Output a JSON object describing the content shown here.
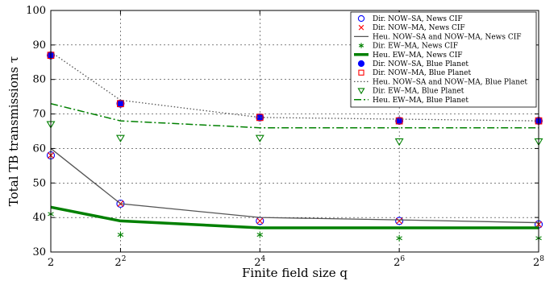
{
  "chart_data": {
    "type": "line",
    "xlabel": "Finite field size q",
    "ylabel": "Total TB transmissions τ",
    "x": [
      1,
      2,
      4,
      6,
      8
    ],
    "xtick_labels": [
      {
        "base": "2",
        "exp": ""
      },
      {
        "base": "2",
        "exp": "2"
      },
      {
        "base": "2",
        "exp": "4"
      },
      {
        "base": "2",
        "exp": "6"
      },
      {
        "base": "2",
        "exp": "8"
      }
    ],
    "xlim": [
      1,
      8
    ],
    "ylim": [
      30,
      100
    ],
    "yticks": [
      30,
      40,
      50,
      60,
      70,
      80,
      90,
      100
    ],
    "grid": true,
    "legend_position": "top-right",
    "colors": {
      "blue": "#0000ff",
      "red": "#ff0000",
      "gray": "#555555",
      "green": "#008000"
    },
    "series": [
      {
        "name": "Dir. NOW–SA, News CIF",
        "style": "marker",
        "marker": "circle-open",
        "color": "#0000ff",
        "values": [
          58,
          44,
          39,
          39,
          38
        ]
      },
      {
        "name": "Dir. NOW–MA, News CIF",
        "style": "marker",
        "marker": "x",
        "color": "#ff0000",
        "values": [
          58,
          44,
          39,
          39,
          38
        ]
      },
      {
        "name": "Heu. NOW–SA and NOW–MA, News CIF",
        "style": "line",
        "dash": "solid",
        "width": 1.3,
        "color": "#555555",
        "values": [
          60,
          44,
          40,
          39.3,
          38.5
        ]
      },
      {
        "name": "Dir. EW–MA, News CIF",
        "style": "marker",
        "marker": "asterisk",
        "color": "#008000",
        "values": [
          41,
          35,
          35,
          34,
          34
        ]
      },
      {
        "name": "Heu. EW–MA, News CIF",
        "style": "line",
        "dash": "solid",
        "width": 3.5,
        "color": "#008000",
        "values": [
          43,
          39,
          37,
          37,
          37
        ]
      },
      {
        "name": "Dir. NOW–SA, Blue Planet",
        "style": "marker",
        "marker": "circle-filled",
        "color": "#0000ff",
        "values": [
          87,
          73,
          69,
          68,
          68
        ]
      },
      {
        "name": "Dir. NOW–MA, Blue Planet",
        "style": "marker",
        "marker": "square-open",
        "color": "#ff0000",
        "values": [
          87,
          73,
          69,
          68,
          68
        ]
      },
      {
        "name": "Heu. NOW–SA and NOW–MA, Blue Planet",
        "style": "line",
        "dash": "dotted",
        "width": 1.3,
        "color": "#555555",
        "values": [
          88,
          74,
          69,
          68.5,
          68
        ]
      },
      {
        "name": "Dir. EW–MA, Blue Planet",
        "style": "marker",
        "marker": "triangle-down-open",
        "color": "#008000",
        "values": [
          67,
          63,
          63,
          62,
          62
        ]
      },
      {
        "name": "Heu. EW–MA, Blue Planet",
        "style": "line",
        "dash": "dashdot",
        "width": 1.5,
        "color": "#008000",
        "values": [
          73,
          68,
          66,
          66,
          66
        ]
      }
    ]
  }
}
